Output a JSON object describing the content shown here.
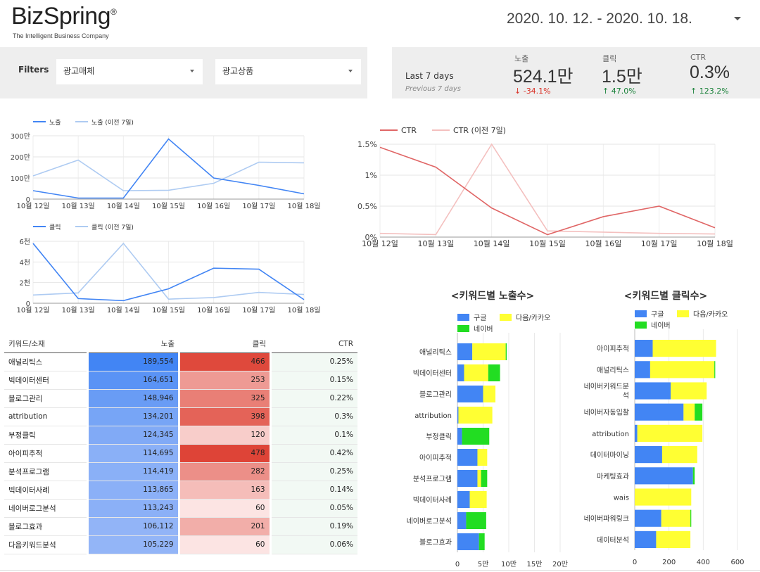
{
  "header": {
    "logo": "BizSpring",
    "logo_mark": "®",
    "tagline": "The Intelligent Business Company",
    "date_range": "2020. 10. 12. - 2020. 10. 18."
  },
  "filters": {
    "label": "Filters",
    "media_value": "광고매체",
    "product_value": "광고상품"
  },
  "kpi": {
    "period": "Last 7 days",
    "previous": "Previous 7 days",
    "items": [
      {
        "label": "노출",
        "value": "524.1만",
        "delta": "-34.1%",
        "direction": "down"
      },
      {
        "label": "클릭",
        "value": "1.5만",
        "delta": "47.0%",
        "direction": "up"
      },
      {
        "label": "CTR",
        "value": "0.3%",
        "delta": "123.2%",
        "direction": "up"
      }
    ]
  },
  "colors": {
    "current": "#4285f4",
    "previous": "#aecbf2",
    "ctr_current": "#e06666",
    "ctr_previous": "#f4c0bf",
    "google": "#4285f4",
    "daum_kakao": "#ffff33",
    "naver": "#22dd22"
  },
  "chart_data": [
    {
      "id": "impressions",
      "type": "line",
      "x": [
        "10월 12일",
        "10월 13일",
        "10월 14일",
        "10월 15일",
        "10월 16일",
        "10월 17일",
        "10월 18일"
      ],
      "series": [
        {
          "name": "노출",
          "values": [
            40,
            5,
            5,
            285,
            100,
            65,
            25
          ]
        },
        {
          "name": "노출 (이전 7일)",
          "values": [
            110,
            185,
            40,
            42,
            75,
            175,
            172
          ]
        }
      ],
      "ylim": [
        0,
        300
      ],
      "yticks": [
        "0",
        "100만",
        "200만",
        "300만"
      ]
    },
    {
      "id": "clicks",
      "type": "line",
      "x": [
        "10월 12일",
        "10월 13일",
        "10월 14일",
        "10월 15일",
        "10월 16일",
        "10월 17일",
        "10월 18일"
      ],
      "series": [
        {
          "name": "클릭",
          "values": [
            5800,
            450,
            250,
            1400,
            3400,
            3300,
            350
          ]
        },
        {
          "name": "클릭 (이전 7일)",
          "values": [
            800,
            1000,
            5800,
            400,
            550,
            1050,
            850
          ]
        }
      ],
      "ylim": [
        0,
        6000
      ],
      "yticks": [
        "0",
        "2천",
        "4천",
        "6천"
      ]
    },
    {
      "id": "ctr",
      "type": "line",
      "x": [
        "10월 12일",
        "10월 13일",
        "10월 14일",
        "10월 15일",
        "10월 16일",
        "10월 17일",
        "10월 18일"
      ],
      "series": [
        {
          "name": "CTR",
          "values": [
            1.45,
            1.13,
            0.47,
            0.04,
            0.33,
            0.5,
            0.15
          ]
        },
        {
          "name": "CTR (이전 7일)",
          "values": [
            0.06,
            0.04,
            1.5,
            0.1,
            0.08,
            0.06,
            0.05
          ]
        }
      ],
      "ylim": [
        0,
        1.5
      ],
      "yticks": [
        "0%",
        "0.5%",
        "1%",
        "1.5%"
      ]
    },
    {
      "id": "keyword-impressions",
      "type": "bar",
      "orientation": "horizontal",
      "stacked": true,
      "title": "<키워드별 노출수>",
      "categories": [
        "애널리틱스",
        "빅데이터센터",
        "블로그관리",
        "attribution",
        "부정클릭",
        "아이피추적",
        "분석프로그램",
        "빅데이터사례",
        "네이버로그분석",
        "블로그효과"
      ],
      "series": [
        {
          "name": "구글",
          "values": [
            2.9,
            1.3,
            5.0,
            0.2,
            0.9,
            3.9,
            3.9,
            2.4,
            1.7,
            4.2
          ]
        },
        {
          "name": "다음/카카오",
          "values": [
            6.5,
            4.7,
            2.4,
            6.6,
            0,
            1.9,
            0.7,
            3.3,
            0,
            0
          ]
        },
        {
          "name": "네이버",
          "values": [
            0.2,
            2.3,
            0,
            0,
            5.3,
            0,
            1.2,
            0,
            3.9,
            1.1
          ]
        }
      ],
      "xlim": [
        0,
        20
      ],
      "xticks": [
        "0",
        "5만",
        "10만",
        "15만",
        "20만"
      ]
    },
    {
      "id": "keyword-clicks",
      "type": "bar",
      "orientation": "horizontal",
      "stacked": true,
      "title": "<키워드별 클릭수>",
      "categories": [
        "아이피추적",
        "애널리틱스",
        [
          "네이버키워드분",
          "석"
        ],
        "네이버자동입찰",
        "attribution",
        "데이터마이닝",
        "마케팅효과",
        "wais",
        "네이버파워링크",
        "데이터분석"
      ],
      "series": [
        {
          "name": "구글",
          "values": [
            105,
            90,
            210,
            285,
            15,
            160,
            340,
            0,
            155,
            125
          ]
        },
        {
          "name": "다음/카카오",
          "values": [
            370,
            375,
            210,
            65,
            380,
            205,
            0,
            330,
            170,
            200
          ]
        },
        {
          "name": "네이버",
          "values": [
            0,
            5,
            0,
            45,
            0,
            0,
            10,
            0,
            5,
            0
          ]
        }
      ],
      "xlim": [
        0,
        600
      ],
      "xticks": [
        "0",
        "200",
        "400",
        "600"
      ]
    }
  ],
  "table": {
    "headers": {
      "name": "키워드/소재",
      "impressions": "노출",
      "clicks": "클릭",
      "ctr": "CTR"
    },
    "rows": [
      {
        "name": "애널리틱스",
        "impressions": "189,554",
        "clicks": "466",
        "ctr": "0.25%",
        "imp_value": 189554,
        "clk_value": 466
      },
      {
        "name": "빅데이터센터",
        "impressions": "164,651",
        "clicks": "253",
        "ctr": "0.15%",
        "imp_value": 164651,
        "clk_value": 253
      },
      {
        "name": "블로그관리",
        "impressions": "148,946",
        "clicks": "325",
        "ctr": "0.22%",
        "imp_value": 148946,
        "clk_value": 325
      },
      {
        "name": "attribution",
        "impressions": "134,201",
        "clicks": "398",
        "ctr": "0.3%",
        "imp_value": 134201,
        "clk_value": 398
      },
      {
        "name": "부정클릭",
        "impressions": "124,345",
        "clicks": "120",
        "ctr": "0.1%",
        "imp_value": 124345,
        "clk_value": 120
      },
      {
        "name": "아이피추적",
        "impressions": "114,695",
        "clicks": "478",
        "ctr": "0.42%",
        "imp_value": 114695,
        "clk_value": 478
      },
      {
        "name": "분석프로그램",
        "impressions": "114,419",
        "clicks": "282",
        "ctr": "0.25%",
        "imp_value": 114419,
        "clk_value": 282
      },
      {
        "name": "빅데이터사례",
        "impressions": "113,865",
        "clicks": "163",
        "ctr": "0.14%",
        "imp_value": 113865,
        "clk_value": 163
      },
      {
        "name": "네이버로그분석",
        "impressions": "113,243",
        "clicks": "60",
        "ctr": "0.05%",
        "imp_value": 113243,
        "clk_value": 60
      },
      {
        "name": "블로그효과",
        "impressions": "106,112",
        "clicks": "201",
        "ctr": "0.19%",
        "imp_value": 106112,
        "clk_value": 201
      },
      {
        "name": "다음키워드분석",
        "impressions": "105,229",
        "clicks": "60",
        "ctr": "0.06%",
        "imp_value": 105229,
        "clk_value": 60
      }
    ]
  }
}
